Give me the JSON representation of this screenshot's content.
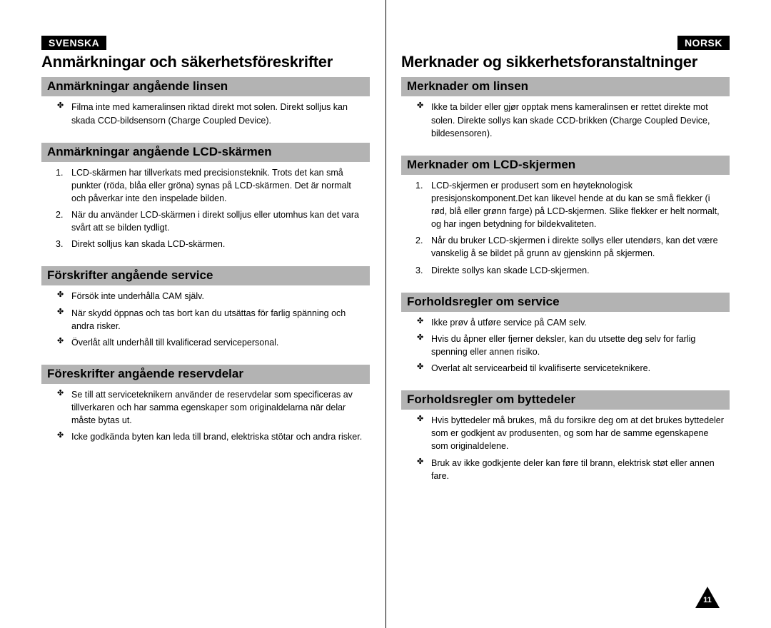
{
  "page_number": "11",
  "left": {
    "lang_badge": "SVENSKA",
    "title": "Anmärkningar och säkerhetsföreskrifter",
    "sections": [
      {
        "header": "Anmärkningar angående linsen",
        "type": "bullets",
        "items": [
          "Filma inte med kameralinsen riktad direkt mot solen. Direkt solljus kan skada CCD-bildsensorn (Charge Coupled Device)."
        ]
      },
      {
        "header": "Anmärkningar angående LCD-skärmen",
        "type": "numbers",
        "items": [
          "LCD-skärmen har tillverkats med precisionsteknik. Trots det kan små punkter (röda, blåa eller gröna) synas på LCD-skärmen. Det är normalt och påverkar inte den inspelade bilden.",
          "När du använder LCD-skärmen i direkt solljus eller utomhus kan det vara svårt att se bilden tydligt.",
          "Direkt solljus kan skada LCD-skärmen."
        ]
      },
      {
        "header": "Förskrifter angående service",
        "type": "bullets",
        "items": [
          "Försök inte underhålla CAM själv.",
          "När skydd öppnas och tas bort kan du utsättas för farlig spänning och andra risker.",
          "Överlåt allt underhåll till kvalificerad servicepersonal."
        ]
      },
      {
        "header": "Föreskrifter angående reservdelar",
        "type": "bullets",
        "items": [
          "Se till att serviceteknikern använder de reservdelar som specificeras av tillverkaren och har samma egenskaper som originaldelarna när delar måste bytas ut.",
          "Icke godkända byten kan leda till brand, elektriska stötar och andra risker."
        ]
      }
    ]
  },
  "right": {
    "lang_badge": "NORSK",
    "title": "Merknader og sikkerhetsforanstaltninger",
    "sections": [
      {
        "header": "Merknader om linsen",
        "type": "bullets",
        "items": [
          "Ikke ta bilder eller gjør opptak mens kameralinsen er rettet direkte mot solen. Direkte sollys kan skade CCD-brikken (Charge Coupled Device, bildesensoren)."
        ]
      },
      {
        "header": "Merknader om LCD-skjermen",
        "type": "numbers",
        "items": [
          "LCD-skjermen er produsert som en høyteknologisk presisjonskomponent.Det kan likevel hende at du kan se små flekker (i rød, blå eller grønn farge) på LCD-skjermen. Slike flekker er helt normalt, og har ingen betydning for bildekvaliteten.",
          "Når du bruker LCD-skjermen i direkte sollys eller utendørs, kan det være vanskelig å se bildet på grunn av gjenskinn på skjermen.",
          "Direkte sollys kan skade LCD-skjermen."
        ]
      },
      {
        "header": "Forholdsregler om service",
        "type": "bullets",
        "items": [
          "Ikke prøv å utføre service på CAM selv.",
          "Hvis du åpner eller fjerner deksler, kan du utsette deg selv for farlig spenning eller annen risiko.",
          "Overlat alt servicearbeid til kvalifiserte serviceteknikere."
        ]
      },
      {
        "header": "Forholdsregler om byttedeler",
        "type": "bullets",
        "items": [
          "Hvis byttedeler må brukes, må du forsikre deg om at det brukes byttedeler som er godkjent av produsenten, og som har de samme egenskapene som originaldelene.",
          "Bruk av ikke godkjente deler kan føre til brann, elektrisk støt eller annen fare."
        ]
      }
    ]
  }
}
